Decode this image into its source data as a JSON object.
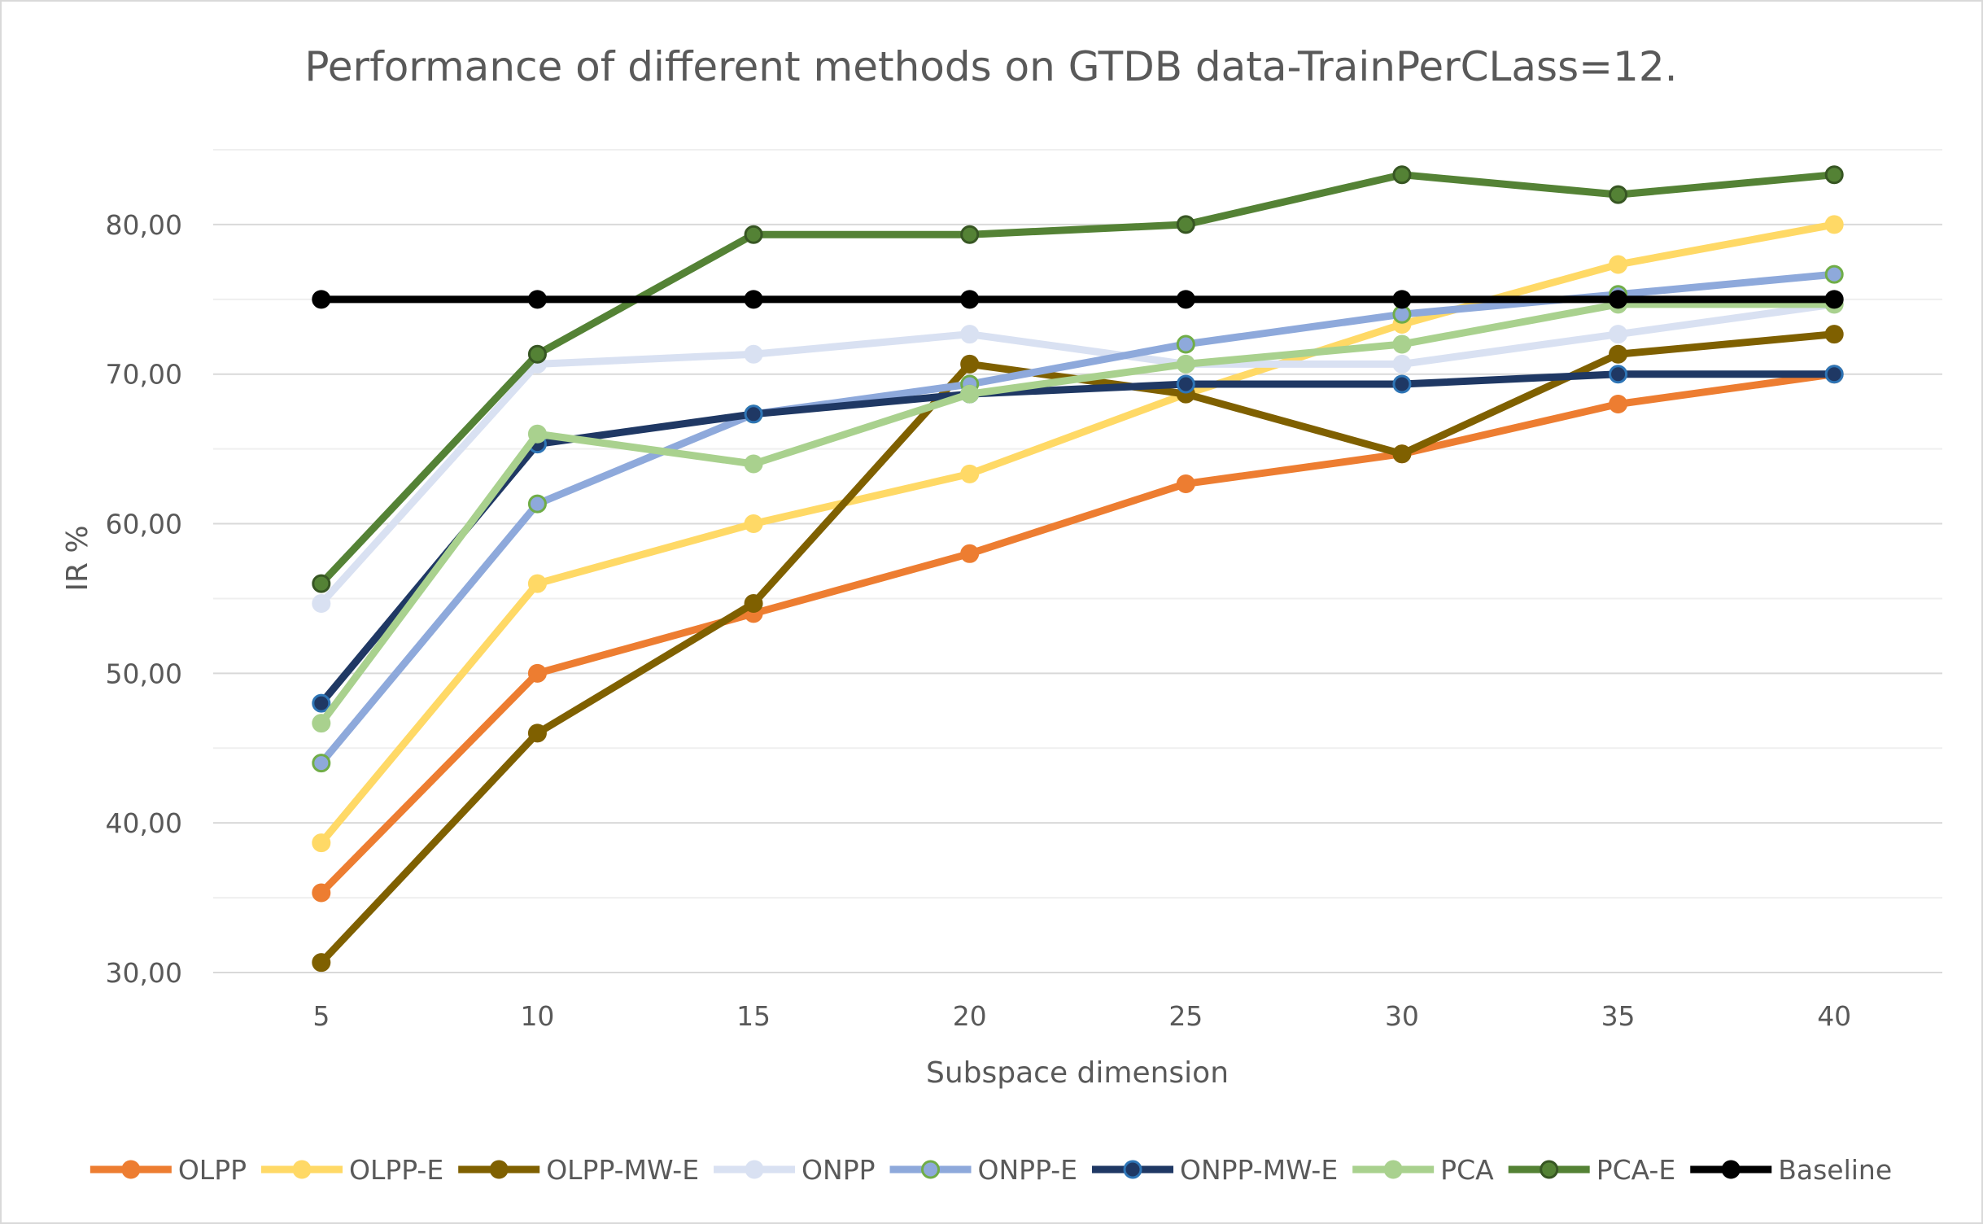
{
  "chart_data": {
    "type": "line",
    "title": "Performance of different methods on GTDB data-TrainPerCLass=12.",
    "xlabel": "Subspace dimension",
    "ylabel": "IR %",
    "categories": [
      "5",
      "10",
      "15",
      "20",
      "25",
      "30",
      "35",
      "40"
    ],
    "ylim": [
      30,
      85
    ],
    "yticks": [
      "30,00",
      "40,00",
      "50,00",
      "60,00",
      "70,00",
      "80,00"
    ],
    "ytick_values": [
      30,
      40,
      50,
      60,
      70,
      80
    ],
    "grid": true,
    "legend_position": "bottom",
    "series": [
      {
        "name": "OLPP",
        "color": "#ED7D31",
        "marker_fill": "#ED7D31",
        "marker_stroke": "#ED7D31",
        "values": [
          35.33,
          50.0,
          54.0,
          58.0,
          62.67,
          64.67,
          68.0,
          70.0
        ]
      },
      {
        "name": "OLPP-E",
        "color": "#FFD966",
        "marker_fill": "#FFD966",
        "marker_stroke": "#FFD966",
        "values": [
          38.67,
          56.0,
          60.0,
          63.33,
          68.67,
          73.33,
          77.33,
          80.0
        ]
      },
      {
        "name": "OLPP-MW-E",
        "color": "#7F6000",
        "marker_fill": "#7F6000",
        "marker_stroke": "#7F6000",
        "values": [
          30.67,
          46.0,
          54.67,
          70.67,
          68.67,
          64.67,
          71.33,
          72.67
        ]
      },
      {
        "name": "ONPP",
        "color": "#D9E1F2",
        "marker_fill": "#D9E1F2",
        "marker_stroke": "#D9E1F2",
        "values": [
          54.67,
          70.67,
          71.33,
          72.67,
          70.67,
          70.67,
          72.67,
          74.67
        ]
      },
      {
        "name": "ONPP-E",
        "color": "#8EA9DB",
        "marker_fill": "#8EA9DB",
        "marker_stroke": "#70AD47",
        "values": [
          44.0,
          61.33,
          67.33,
          69.33,
          72.0,
          74.0,
          75.33,
          76.67
        ]
      },
      {
        "name": "ONPP-MW-E",
        "color": "#1F3864",
        "marker_fill": "#1F3864",
        "marker_stroke": "#2E75B6",
        "values": [
          48.0,
          65.33,
          67.33,
          68.67,
          69.33,
          69.33,
          70.0,
          70.0
        ]
      },
      {
        "name": "PCA",
        "color": "#A9D18E",
        "marker_fill": "#A9D18E",
        "marker_stroke": "#A9D18E",
        "values": [
          46.67,
          66.0,
          64.0,
          68.67,
          70.67,
          72.0,
          74.67,
          74.67
        ]
      },
      {
        "name": "PCA-E",
        "color": "#548235",
        "marker_fill": "#548235",
        "marker_stroke": "#375623",
        "values": [
          56.0,
          71.33,
          79.33,
          79.33,
          80.0,
          83.33,
          82.0,
          83.33
        ]
      },
      {
        "name": "Baseline",
        "color": "#000000",
        "marker_fill": "#000000",
        "marker_stroke": "#000000",
        "values": [
          75.0,
          75.0,
          75.0,
          75.0,
          75.0,
          75.0,
          75.0,
          75.0
        ]
      }
    ]
  }
}
